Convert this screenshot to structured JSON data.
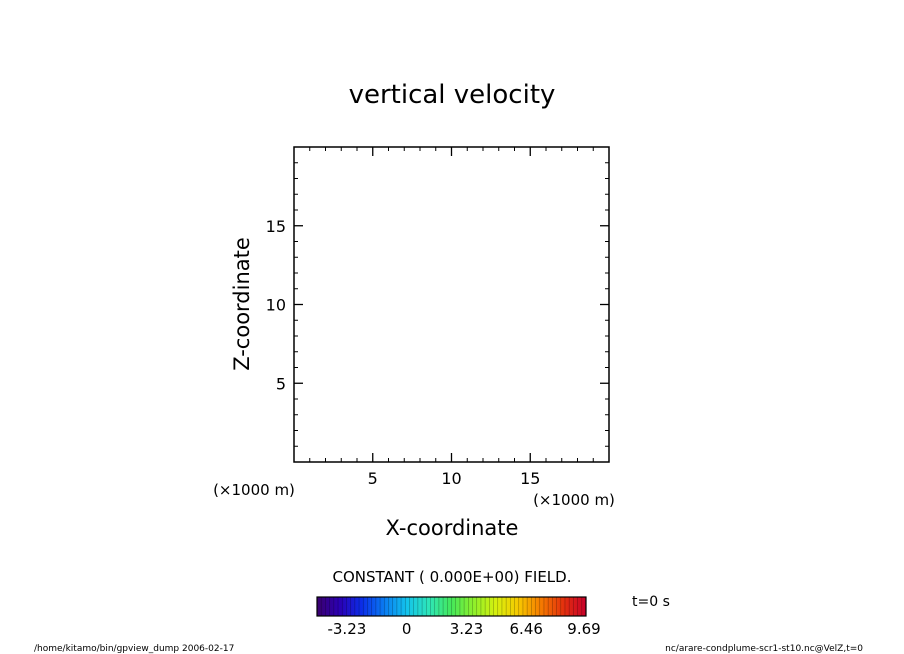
{
  "chart_data": {
    "type": "heatmap",
    "title": "vertical velocity",
    "xlabel": "X-coordinate",
    "ylabel": "Z-coordinate",
    "x_unit_label": "(×1000 m)",
    "y_unit_label": "(×1000 m)",
    "xlim": [
      0,
      20
    ],
    "ylim": [
      0,
      20
    ],
    "x_ticks": [
      5,
      10,
      15
    ],
    "y_ticks": [
      5,
      10,
      15
    ],
    "x_minor_step": 1,
    "y_minor_step": 1,
    "grid": false,
    "field_message": "CONSTANT ( 0.000E+00) FIELD.",
    "colorbar": {
      "min": -4.845,
      "max": 9.69,
      "tick_labels": [
        "-3.23",
        "0",
        "3.23",
        "6.46",
        "9.69"
      ],
      "tick_values": [
        -3.23,
        0,
        3.23,
        6.46,
        9.69
      ],
      "colors": [
        "#3a006e",
        "#2b00b4",
        "#0b2ee8",
        "#0a7cf2",
        "#13c3ec",
        "#2ee6b8",
        "#45e85a",
        "#8ff02b",
        "#d8f00e",
        "#f7c800",
        "#f57a00",
        "#e3300e",
        "#c8002a"
      ]
    },
    "time_label": "t=0 s"
  },
  "footer": {
    "left": "/home/kitamo/bin/gpview_dump  2006-02-17",
    "right": "nc/arare-condplume-scr1-st10.nc@VelZ,t=0"
  }
}
